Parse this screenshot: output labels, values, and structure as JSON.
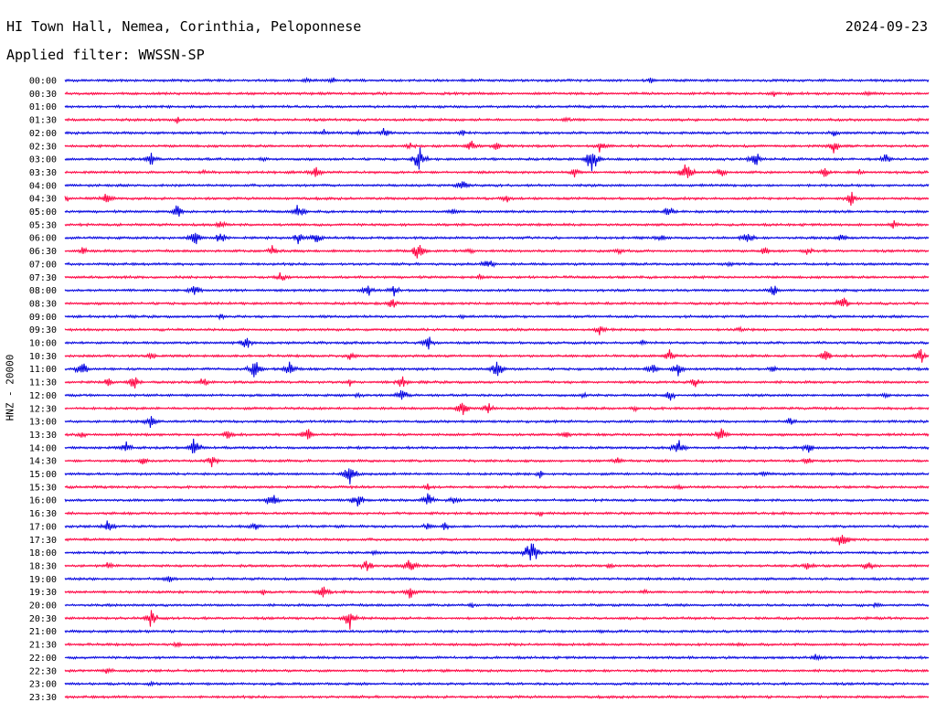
{
  "header": {
    "station": "HI Town Hall, Nemea, Corinthia, Peloponnese",
    "date": "2024-09-23",
    "filter": "Applied filter: WWSSN-SP"
  },
  "channel_label": "HNZ - 20000",
  "chart_data": {
    "type": "line",
    "title": "HI Town Hall, Nemea, Corinthia, Peloponnese",
    "subtitle": "Applied filter: WWSSN-SP",
    "ylabel": "HNZ - 20000",
    "xlabel": "",
    "grid": false,
    "colors": [
      "#0000e0",
      "#ff0040"
    ],
    "row_duration_minutes": 30,
    "rows": [
      {
        "label": "00:00",
        "events": [
          [
            0.28,
            3
          ],
          [
            0.31,
            3
          ],
          [
            0.68,
            3
          ]
        ]
      },
      {
        "label": "00:30",
        "events": [
          [
            0.82,
            3
          ],
          [
            0.93,
            3
          ]
        ]
      },
      {
        "label": "01:00",
        "events": []
      },
      {
        "label": "01:30",
        "events": [
          [
            0.13,
            3
          ],
          [
            0.58,
            3
          ]
        ]
      },
      {
        "label": "02:00",
        "events": [
          [
            0.3,
            3
          ],
          [
            0.34,
            3
          ],
          [
            0.37,
            5
          ],
          [
            0.46,
            4
          ],
          [
            0.89,
            4
          ]
        ]
      },
      {
        "label": "02:30",
        "events": [
          [
            0.4,
            4
          ],
          [
            0.47,
            6
          ],
          [
            0.5,
            5
          ],
          [
            0.62,
            6
          ],
          [
            0.89,
            8
          ]
        ]
      },
      {
        "label": "03:00",
        "events": [
          [
            0.1,
            7
          ],
          [
            0.23,
            3
          ],
          [
            0.41,
            11
          ],
          [
            0.61,
            14
          ],
          [
            0.8,
            8
          ],
          [
            0.95,
            5
          ]
        ]
      },
      {
        "label": "03:30",
        "events": [
          [
            0.16,
            3
          ],
          [
            0.29,
            6
          ],
          [
            0.59,
            5
          ],
          [
            0.72,
            12
          ],
          [
            0.76,
            5
          ],
          [
            0.88,
            5
          ],
          [
            0.92,
            3
          ]
        ]
      },
      {
        "label": "04:00",
        "events": [
          [
            0.46,
            7
          ]
        ]
      },
      {
        "label": "04:30",
        "events": [
          [
            0.0,
            5
          ],
          [
            0.05,
            8
          ],
          [
            0.51,
            5
          ],
          [
            0.91,
            7
          ]
        ]
      },
      {
        "label": "05:00",
        "events": [
          [
            0.13,
            7
          ],
          [
            0.27,
            8
          ],
          [
            0.45,
            4
          ],
          [
            0.7,
            7
          ]
        ]
      },
      {
        "label": "05:30",
        "events": [
          [
            0.18,
            5
          ],
          [
            0.96,
            4
          ]
        ]
      },
      {
        "label": "06:00",
        "events": [
          [
            0.15,
            9
          ],
          [
            0.18,
            6
          ],
          [
            0.27,
            5
          ],
          [
            0.29,
            9
          ],
          [
            0.69,
            4
          ],
          [
            0.79,
            8
          ],
          [
            0.9,
            5
          ]
        ]
      },
      {
        "label": "06:30",
        "events": [
          [
            0.02,
            4
          ],
          [
            0.24,
            6
          ],
          [
            0.41,
            9
          ],
          [
            0.47,
            3
          ],
          [
            0.64,
            4
          ],
          [
            0.81,
            5
          ],
          [
            0.86,
            4
          ]
        ]
      },
      {
        "label": "07:00",
        "events": [
          [
            0.49,
            7
          ],
          [
            0.77,
            3
          ]
        ]
      },
      {
        "label": "07:30",
        "events": [
          [
            0.25,
            5
          ],
          [
            0.48,
            3
          ]
        ]
      },
      {
        "label": "08:00",
        "events": [
          [
            0.15,
            6
          ],
          [
            0.35,
            8
          ],
          [
            0.38,
            6
          ],
          [
            0.82,
            6
          ]
        ]
      },
      {
        "label": "08:30",
        "events": [
          [
            0.38,
            6
          ],
          [
            0.9,
            8
          ]
        ]
      },
      {
        "label": "09:00",
        "events": [
          [
            0.18,
            3
          ],
          [
            0.46,
            3
          ]
        ]
      },
      {
        "label": "09:30",
        "events": [
          [
            0.62,
            6
          ],
          [
            0.78,
            3
          ]
        ]
      },
      {
        "label": "10:00",
        "events": [
          [
            0.21,
            6
          ],
          [
            0.42,
            7
          ],
          [
            0.67,
            3
          ]
        ]
      },
      {
        "label": "10:30",
        "events": [
          [
            0.1,
            5
          ],
          [
            0.33,
            5
          ],
          [
            0.7,
            6
          ],
          [
            0.88,
            6
          ],
          [
            0.99,
            8
          ]
        ]
      },
      {
        "label": "11:00",
        "events": [
          [
            0.02,
            8
          ],
          [
            0.22,
            10
          ],
          [
            0.26,
            9
          ],
          [
            0.5,
            9
          ],
          [
            0.68,
            6
          ],
          [
            0.71,
            8
          ],
          [
            0.82,
            4
          ]
        ]
      },
      {
        "label": "11:30",
        "events": [
          [
            0.05,
            5
          ],
          [
            0.08,
            8
          ],
          [
            0.16,
            5
          ],
          [
            0.33,
            4
          ],
          [
            0.39,
            6
          ],
          [
            0.73,
            6
          ]
        ]
      },
      {
        "label": "12:00",
        "events": [
          [
            0.34,
            4
          ],
          [
            0.39,
            8
          ],
          [
            0.6,
            3
          ],
          [
            0.7,
            6
          ],
          [
            0.95,
            3
          ]
        ]
      },
      {
        "label": "12:30",
        "events": [
          [
            0.46,
            9
          ],
          [
            0.49,
            5
          ],
          [
            0.66,
            3
          ]
        ]
      },
      {
        "label": "13:00",
        "events": [
          [
            0.1,
            8
          ],
          [
            0.84,
            5
          ]
        ]
      },
      {
        "label": "13:30",
        "events": [
          [
            0.02,
            3
          ],
          [
            0.19,
            5
          ],
          [
            0.28,
            7
          ],
          [
            0.58,
            5
          ],
          [
            0.76,
            9
          ]
        ]
      },
      {
        "label": "14:00",
        "events": [
          [
            0.07,
            7
          ],
          [
            0.15,
            10
          ],
          [
            0.71,
            8
          ],
          [
            0.86,
            5
          ]
        ]
      },
      {
        "label": "14:30",
        "events": [
          [
            0.09,
            5
          ],
          [
            0.17,
            6
          ],
          [
            0.64,
            4
          ],
          [
            0.86,
            4
          ]
        ]
      },
      {
        "label": "15:00",
        "events": [
          [
            0.33,
            12
          ],
          [
            0.55,
            4
          ],
          [
            0.81,
            3
          ]
        ]
      },
      {
        "label": "15:30",
        "events": [
          [
            0.42,
            4
          ],
          [
            0.71,
            3
          ]
        ]
      },
      {
        "label": "16:00",
        "events": [
          [
            0.24,
            9
          ],
          [
            0.34,
            10
          ],
          [
            0.42,
            7
          ],
          [
            0.45,
            5
          ]
        ]
      },
      {
        "label": "16:30",
        "events": [
          [
            0.55,
            3
          ]
        ]
      },
      {
        "label": "17:00",
        "events": [
          [
            0.05,
            7
          ],
          [
            0.22,
            6
          ],
          [
            0.42,
            4
          ],
          [
            0.44,
            5
          ]
        ]
      },
      {
        "label": "17:30",
        "events": [
          [
            0.9,
            9
          ]
        ]
      },
      {
        "label": "18:00",
        "events": [
          [
            0.54,
            14
          ],
          [
            0.36,
            3
          ]
        ]
      },
      {
        "label": "18:30",
        "events": [
          [
            0.05,
            4
          ],
          [
            0.35,
            7
          ],
          [
            0.4,
            8
          ],
          [
            0.63,
            3
          ],
          [
            0.86,
            6
          ],
          [
            0.93,
            5
          ]
        ]
      },
      {
        "label": "19:00",
        "events": [
          [
            0.12,
            5
          ]
        ]
      },
      {
        "label": "19:30",
        "events": [
          [
            0.23,
            3
          ],
          [
            0.3,
            8
          ],
          [
            0.4,
            7
          ],
          [
            0.67,
            3
          ]
        ]
      },
      {
        "label": "20:00",
        "events": [
          [
            0.47,
            3
          ],
          [
            0.94,
            3
          ]
        ]
      },
      {
        "label": "20:30",
        "events": [
          [
            0.1,
            8
          ],
          [
            0.33,
            10
          ]
        ]
      },
      {
        "label": "21:00",
        "events": [
          [
            0.62,
            3
          ]
        ]
      },
      {
        "label": "21:30",
        "events": [
          [
            0.13,
            3
          ],
          [
            0.78,
            3
          ]
        ]
      },
      {
        "label": "22:00",
        "events": [
          [
            0.87,
            4
          ]
        ]
      },
      {
        "label": "22:30",
        "events": [
          [
            0.05,
            4
          ]
        ]
      },
      {
        "label": "23:00",
        "events": [
          [
            0.1,
            3
          ]
        ]
      },
      {
        "label": "23:30",
        "events": []
      }
    ]
  }
}
